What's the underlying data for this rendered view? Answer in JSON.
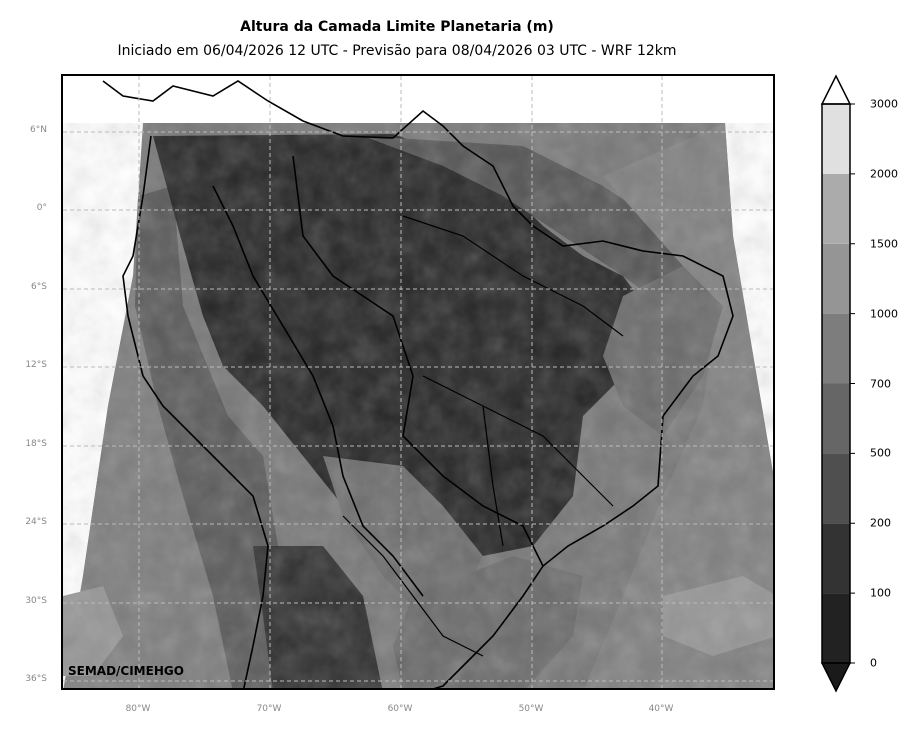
{
  "title": "Altura da Camada Limite Planetaria (m)",
  "subtitle": "Iniciado em 06/04/2026 12 UTC - Previsão para 08/04/2026 03 UTC - WRF 12km",
  "watermark": "SEMAD/CIMEHGO",
  "map": {
    "variable": "Planetary boundary layer height",
    "units": "m",
    "lat_labels": [
      "6°N",
      "0°",
      "6°S",
      "12°S",
      "18°S",
      "24°S",
      "30°S",
      "36°S"
    ],
    "lon_labels": [
      "80°W",
      "70°W",
      "60°W",
      "50°W",
      "40°W"
    ],
    "gridlines": true,
    "gridline_style": "dashed"
  },
  "colorbar": {
    "levels": [
      "0",
      "100",
      "200",
      "500",
      "700",
      "1000",
      "1500",
      "2000",
      "3000"
    ],
    "colors": [
      "#1a1a1a",
      "#222222",
      "#333333",
      "#4f4f4f",
      "#666666",
      "#7d7d7d",
      "#959595",
      "#ababab",
      "#e0e0e0"
    ],
    "extend": "both",
    "under_color": "#1a1a1a",
    "over_color": "#ffffff"
  }
}
